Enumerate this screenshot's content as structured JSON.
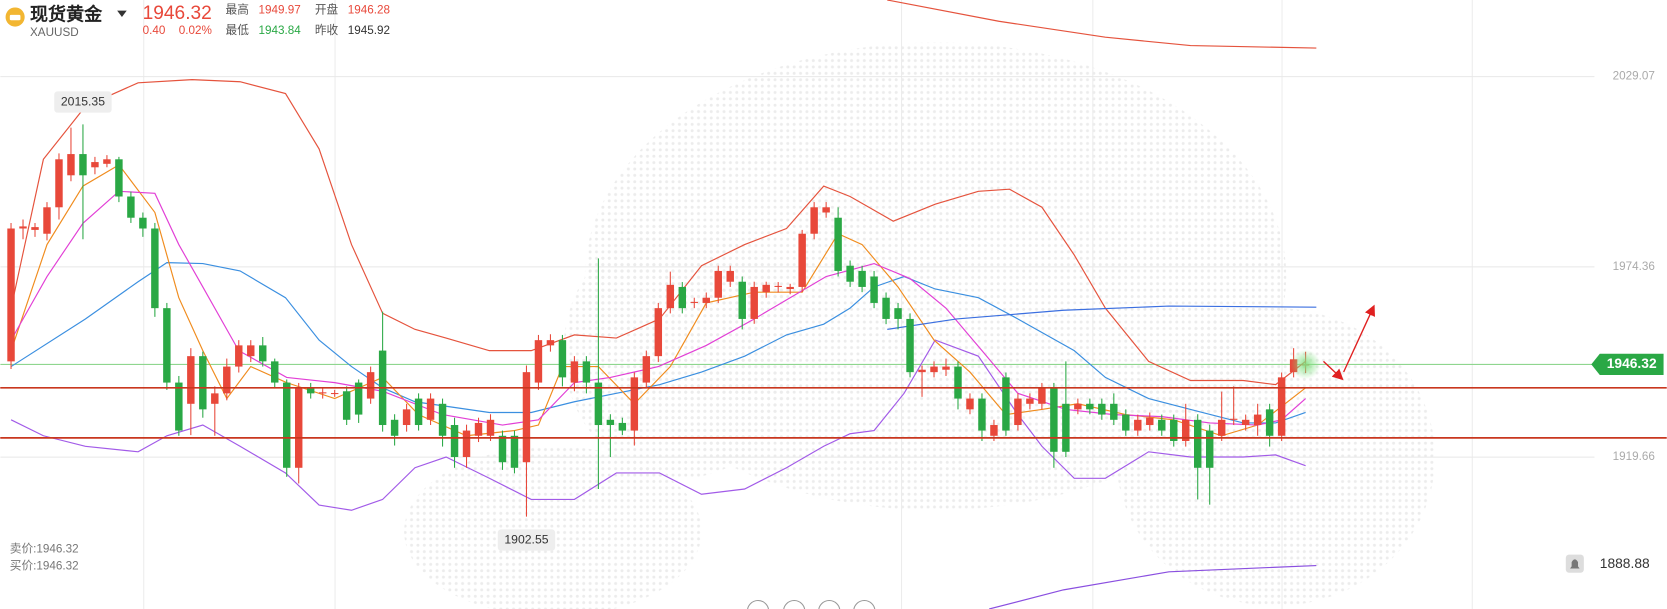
{
  "header": {
    "name": "现货黄金",
    "symbol": "XAUUSD",
    "price": "1946.32",
    "change": "0.40",
    "change_pct": "0.02%",
    "high_label": "最高",
    "high": "1949.97",
    "open_label": "开盘",
    "open": "1946.28",
    "low_label": "最低",
    "low": "1943.84",
    "prev_label": "昨收",
    "prev_close": "1945.92"
  },
  "footer": {
    "bid_label": "卖价:",
    "bid": "1946.32",
    "ask_label": "买价:",
    "ask": "1946.32"
  },
  "chart_data": {
    "type": "candlestick",
    "up_color": "#e8483a",
    "down_color": "#2aa845",
    "xlim": [
      -0.9,
      132.1
    ],
    "ylim": [
      1876.0,
      2051.1
    ],
    "yticks": [
      2029.07,
      1974.36,
      1919.66
    ],
    "grid": true,
    "candles": {
      "open": [
        1947.2,
        1985.4,
        1985.0,
        1983.9,
        1991.5,
        2000.7,
        2006.8,
        2003.0,
        2004.0,
        2005.3,
        1994.6,
        1988.5,
        1985.4,
        1962.5,
        1941.1,
        1935.0,
        1948.7,
        1935.0,
        1938.0,
        1945.7,
        1948.7,
        1951.8,
        1947.2,
        1941.1,
        1916.6,
        1939.6,
        1938.0,
        1938.0,
        1938.6,
        1941.1,
        1936.5,
        1950.3,
        1930.4,
        1928.9,
        1936.5,
        1930.4,
        1935.0,
        1928.9,
        1919.7,
        1925.8,
        1925.8,
        1925.8,
        1925.8,
        1918.2,
        1941.1,
        1951.8,
        1953.3,
        1941.1,
        1947.2,
        1941.1,
        1930.4,
        1929.5,
        1927.3,
        1941.1,
        1948.7,
        1962.5,
        1968.6,
        1964.0,
        1964.0,
        1965.5,
        1970.1,
        1970.1,
        1959.4,
        1967.1,
        1968.6,
        1968.0,
        1968.6,
        1983.9,
        1990.0,
        1988.5,
        1974.7,
        1973.2,
        1971.6,
        1965.5,
        1962.5,
        1959.4,
        1944.1,
        1944.1,
        1944.8,
        1945.7,
        1933.4,
        1936.5,
        1925.8,
        1942.6,
        1928.9,
        1935.0,
        1935.0,
        1939.6,
        1935.0,
        1933.4,
        1935.0,
        1935.0,
        1935.0,
        1931.9,
        1927.3,
        1928.9,
        1930.4,
        1930.4,
        1924.3,
        1930.4,
        1927.3,
        1925.8,
        1930.4,
        1928.9,
        1928.9,
        1933.4,
        1925.8,
        1944.1,
        1946.28
      ],
      "high": [
        1987,
        1988,
        1987,
        1993,
        2007,
        2014.4,
        2015.35,
        2006,
        2006.5,
        2006,
        1996,
        1990,
        1987,
        1964,
        1943,
        1951,
        1950,
        1940,
        1948,
        1953.3,
        1953.3,
        1954.2,
        1948,
        1942,
        1941,
        1941,
        1939.5,
        1939,
        1940,
        1942,
        1945.7,
        1961.5,
        1932,
        1935,
        1938,
        1938,
        1936.5,
        1931,
        1929,
        1931,
        1932,
        1927.3,
        1927.3,
        1946,
        1954.8,
        1955,
        1954.8,
        1948.7,
        1948.7,
        1976.8,
        1932,
        1931,
        1944,
        1950.3,
        1964,
        1973,
        1970,
        1965.5,
        1967,
        1974.7,
        1974.7,
        1971.6,
        1970.1,
        1970.1,
        1970,
        1969.5,
        1985,
        1993,
        1993,
        1991.5,
        1976.2,
        1974.7,
        1973.2,
        1967,
        1964,
        1961,
        1946,
        1947.2,
        1948,
        1947.2,
        1938,
        1938,
        1930.4,
        1944,
        1938,
        1938,
        1941,
        1941,
        1947.2,
        1936.5,
        1936.5,
        1936.5,
        1938,
        1933.4,
        1931.9,
        1932.5,
        1931.9,
        1931.9,
        1935,
        1932,
        1929,
        1938.5,
        1940,
        1931.9,
        1935,
        1935,
        1944,
        1951,
        1949.97
      ],
      "low": [
        1945,
        1982.3,
        1983,
        1982,
        1988,
        1999,
        1982.3,
        2001,
        2003,
        1993,
        1987,
        1983,
        1960,
        1939,
        1925.8,
        1926,
        1931,
        1925.8,
        1936,
        1944,
        1947,
        1945.7,
        1939.6,
        1914,
        1912.1,
        1936.5,
        1936.5,
        1937,
        1928.9,
        1929.5,
        1935,
        1927,
        1923,
        1927,
        1927.3,
        1928.9,
        1922.7,
        1916.6,
        1916.6,
        1924,
        1924.3,
        1916,
        1915,
        1902.55,
        1939,
        1950,
        1940,
        1938.6,
        1938,
        1910.5,
        1919.7,
        1926,
        1923,
        1939.6,
        1947,
        1961,
        1961,
        1962.5,
        1962.5,
        1964,
        1968.6,
        1956.4,
        1958,
        1965.5,
        1967,
        1966.5,
        1967.1,
        1982.3,
        1988.5,
        1971.6,
        1968.6,
        1967.1,
        1962.5,
        1957.9,
        1956.4,
        1942.6,
        1937,
        1942.6,
        1943,
        1933.4,
        1932,
        1924.3,
        1924.3,
        1925.8,
        1927.3,
        1933.4,
        1933.4,
        1916.6,
        1919.7,
        1932,
        1932,
        1930.4,
        1928.9,
        1925.8,
        1925.8,
        1927.3,
        1925.8,
        1922.7,
        1922.7,
        1907.5,
        1906,
        1924.3,
        1928.9,
        1927.3,
        1925.8,
        1922.7,
        1924.3,
        1942.6,
        1943.84
      ],
      "close": [
        1985.4,
        1986.0,
        1985.8,
        1991.5,
        2005.3,
        2006.8,
        2000.7,
        2004.5,
        2005.3,
        1994.6,
        1988.5,
        1985.4,
        1962.5,
        1941.1,
        1927.3,
        1948.7,
        1933.4,
        1938.0,
        1945.7,
        1951.8,
        1951.8,
        1947.2,
        1941.1,
        1916.6,
        1939.6,
        1938.0,
        1938.3,
        1938.1,
        1930.4,
        1931.9,
        1944.1,
        1928.9,
        1925.8,
        1933.4,
        1928.9,
        1936.5,
        1925.8,
        1919.7,
        1927.3,
        1929.5,
        1930.4,
        1918.2,
        1916.6,
        1944.1,
        1953.3,
        1953.3,
        1942.6,
        1947.2,
        1941.1,
        1928.9,
        1928.9,
        1927.3,
        1942.6,
        1948.7,
        1962.5,
        1969.2,
        1962.5,
        1964.3,
        1965.5,
        1973.2,
        1973.2,
        1959.4,
        1968.6,
        1969.2,
        1968.9,
        1968.6,
        1983.9,
        1991.5,
        1991.5,
        1973.2,
        1970.1,
        1968.6,
        1964.0,
        1959.4,
        1959.4,
        1944.1,
        1944.8,
        1945.7,
        1945.7,
        1936.5,
        1936.5,
        1927.3,
        1928.9,
        1927.3,
        1936.5,
        1936.5,
        1939.6,
        1921.2,
        1921.2,
        1935.0,
        1933.4,
        1931.9,
        1930.4,
        1927.3,
        1930.4,
        1931.0,
        1927.3,
        1924.3,
        1930.4,
        1916.6,
        1916.6,
        1930.4,
        1930.7,
        1930.4,
        1931.9,
        1925.8,
        1942.6,
        1947.8,
        1946.32
      ]
    },
    "max_index": 6,
    "min_index": 43,
    "last_index": 108,
    "price_line_color": "#8fd68f",
    "hlines": [
      1939.6,
      1925.2
    ],
    "hline_color": "#c9371f",
    "alert_price": 1888.88,
    "indicators": [
      {
        "color": "#e5533d",
        "x": [
          0,
          2.7,
          6.2,
          10.6,
          15.1,
          19.1,
          22.9,
          25.7,
          28.4,
          31.0,
          33.7,
          36.3,
          39.9,
          43.4,
          47.0,
          50.5,
          54.1,
          57.6,
          61.2,
          64.7,
          67.8,
          70.0,
          73.6,
          77.1,
          80.7,
          83.3,
          86.0,
          88.7,
          91.3,
          94.9,
          98.4,
          102.8,
          105.5,
          108
        ],
        "values": [
          1962.5,
          2005.3,
          2020.5,
          2027.3,
          2028.2,
          2027.6,
          2024.2,
          2008.3,
          1980.8,
          1961.0,
          1956.4,
          1953.9,
          1950.3,
          1950.3,
          1954.8,
          1953.9,
          1959.4,
          1974.7,
          1980.8,
          1985.4,
          1997.6,
          1994.6,
          1987.5,
          1992.4,
          1996.1,
          1996.7,
          1991.5,
          1977.8,
          1962.5,
          1947.2,
          1941.7,
          1941.7,
          1940.5,
          1947.2
        ]
      },
      {
        "color": "#3b8fe0",
        "x": [
          0,
          6.2,
          10.6,
          13,
          16,
          19.1,
          22.9,
          25.7,
          28.4,
          31,
          33.7,
          39.9,
          43.4,
          47,
          50.5,
          54.1,
          57.6,
          61.2,
          64.7,
          67.8,
          70,
          72,
          74.5,
          77.1,
          80.7,
          84,
          88.7,
          91.3,
          94.9,
          98.4,
          102.8,
          105.5,
          108
        ],
        "values": [
          1945.7,
          1959.4,
          1970.1,
          1975.6,
          1975.3,
          1973.2,
          1965.5,
          1953.3,
          1945.7,
          1939.6,
          1935.6,
          1932.5,
          1932.5,
          1935.6,
          1938.0,
          1940.5,
          1944.1,
          1948.7,
          1954.8,
          1957.9,
          1962.5,
          1968.6,
          1971.6,
          1968.0,
          1965.5,
          1959.4,
          1950.3,
          1942.6,
          1936.5,
          1933.4,
          1929.5,
          1929.5,
          1932.5
        ]
      },
      {
        "color": "#a25be8",
        "x": [
          0,
          2.7,
          6.2,
          10.6,
          13,
          16,
          19.1,
          22.9,
          25.7,
          28.4,
          31,
          33.7,
          36.3,
          39.9,
          43.4,
          47,
          50.5,
          54.1,
          57.6,
          61.2,
          64.7,
          67.8,
          70,
          72,
          74.5,
          77.1,
          80.7,
          84,
          86,
          88.7,
          91.3,
          94.9,
          98.4,
          102.8,
          105.5,
          108
        ],
        "values": [
          1930.4,
          1925.8,
          1922.8,
          1921.2,
          1925.8,
          1928.9,
          1922.8,
          1915.1,
          1905.9,
          1904.4,
          1907.5,
          1916.6,
          1919.7,
          1913.6,
          1907.5,
          1907.5,
          1915.1,
          1915.1,
          1909.0,
          1910.5,
          1916.6,
          1922.8,
          1926.4,
          1927.3,
          1938.0,
          1953.3,
          1948.7,
          1931.9,
          1922.8,
          1913.6,
          1913.6,
          1921.2,
          1919.7,
          1919.7,
          1920.3,
          1917.2
        ]
      },
      {
        "color": "#f08c1e",
        "x": [
          0,
          3,
          6,
          9,
          12,
          14,
          16,
          18,
          20,
          23,
          27,
          31,
          34,
          38,
          42,
          44,
          46,
          49,
          52,
          55,
          58,
          62,
          66,
          69,
          71,
          74,
          77,
          80,
          83,
          86,
          89,
          93,
          97,
          101,
          104,
          108
        ],
        "values": [
          1950.3,
          1980.8,
          1997.6,
          2003.7,
          1990.0,
          1965.5,
          1950.3,
          1936.5,
          1945.7,
          1941.1,
          1936.5,
          1942.6,
          1931.9,
          1925.8,
          1927.3,
          1928.9,
          1945.7,
          1945.7,
          1935.0,
          1945.7,
          1964.0,
          1967.1,
          1967.1,
          1983.9,
          1980.8,
          1968.6,
          1953.3,
          1944.1,
          1931.9,
          1933.4,
          1935.0,
          1931.9,
          1930.4,
          1925.8,
          1928.9,
          1939.6
        ]
      },
      {
        "color": "#e23fd6",
        "x": [
          0,
          3,
          6,
          9,
          12,
          14,
          16,
          19,
          23,
          27,
          31,
          36,
          41,
          44,
          47,
          50,
          54,
          58,
          62,
          65,
          68,
          72,
          75,
          78,
          81,
          84,
          88,
          92,
          96,
          100,
          104,
          106,
          108
        ],
        "values": [
          1953.3,
          1971.6,
          1986.9,
          1996.1,
          1995.5,
          1980.8,
          1968.6,
          1950.3,
          1942.6,
          1941.1,
          1938.6,
          1931.9,
          1928.9,
          1930.4,
          1941.1,
          1942.6,
          1945.7,
          1951.8,
          1959.4,
          1965.5,
          1971.6,
          1975.3,
          1971.0,
          1962.5,
          1950.3,
          1938.0,
          1933.4,
          1931.9,
          1931.3,
          1929.5,
          1928.9,
          1930.4,
          1936.5
        ]
      },
      {
        "color": "#e5533d",
        "x": [
          73.1,
          82.4,
          91.3,
          98.4,
          108.9
        ],
        "values": [
          2051.1,
          2045.0,
          2040.4,
          2038.0,
          2037.3
        ]
      },
      {
        "color": "#3b6fe0",
        "x": [
          73.1,
          78.9,
          87.8,
          96.6,
          108.9
        ],
        "values": [
          1956.4,
          1959.4,
          1961.9,
          1963.1,
          1962.8
        ]
      },
      {
        "color": "#8a4fe0",
        "x": [
          81.6,
          87.8,
          96.6,
          108.9
        ],
        "values": [
          1876.0,
          1881.5,
          1886.7,
          1888.5
        ]
      }
    ]
  }
}
